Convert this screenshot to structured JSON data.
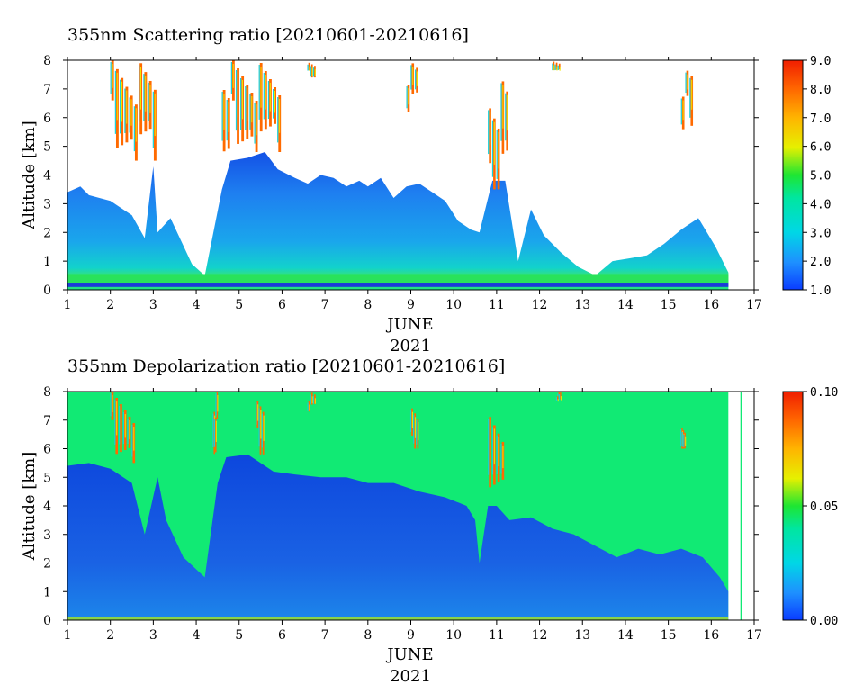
{
  "chart_data": [
    {
      "type": "heatmap",
      "title": "355nm Scattering ratio [20210601-20210616]",
      "xlabel": "JUNE",
      "xlabel2": "2021",
      "ylabel": "Altitude [km]",
      "xlim": [
        1,
        17
      ],
      "ylim": [
        0,
        8
      ],
      "xticks": [
        "1",
        "2",
        "3",
        "4",
        "5",
        "6",
        "7",
        "8",
        "9",
        "10",
        "11",
        "12",
        "13",
        "14",
        "15",
        "16",
        "17"
      ],
      "yticks": [
        "0",
        "1",
        "2",
        "3",
        "4",
        "5",
        "6",
        "7",
        "8"
      ],
      "colorbar": {
        "min": 1.0,
        "max": 9.0,
        "ticks": [
          "1.0",
          "2.0",
          "3.0",
          "4.0",
          "5.0",
          "6.0",
          "7.0",
          "8.0",
          "9.0"
        ]
      },
      "data_end_day": 16.7,
      "blh_top_km": [
        [
          1.0,
          3.4
        ],
        [
          1.3,
          3.6
        ],
        [
          1.5,
          3.3
        ],
        [
          2.0,
          3.1
        ],
        [
          2.5,
          2.6
        ],
        [
          2.8,
          1.8
        ],
        [
          3.0,
          4.3
        ],
        [
          3.1,
          2.0
        ],
        [
          3.4,
          2.5
        ],
        [
          3.9,
          0.9
        ],
        [
          4.2,
          0.5
        ],
        [
          4.6,
          3.5
        ],
        [
          4.8,
          4.5
        ],
        [
          5.2,
          4.6
        ],
        [
          5.6,
          4.8
        ],
        [
          5.9,
          4.2
        ],
        [
          6.3,
          3.9
        ],
        [
          6.6,
          3.7
        ],
        [
          6.9,
          4.0
        ],
        [
          7.2,
          3.9
        ],
        [
          7.5,
          3.6
        ],
        [
          7.8,
          3.8
        ],
        [
          8.0,
          3.6
        ],
        [
          8.3,
          3.9
        ],
        [
          8.6,
          3.2
        ],
        [
          8.9,
          3.6
        ],
        [
          9.2,
          3.7
        ],
        [
          9.5,
          3.4
        ],
        [
          9.8,
          3.1
        ],
        [
          10.1,
          2.4
        ],
        [
          10.4,
          2.1
        ],
        [
          10.6,
          2.0
        ],
        [
          10.9,
          3.8
        ],
        [
          11.2,
          3.8
        ],
        [
          11.5,
          1.0
        ],
        [
          11.8,
          2.8
        ],
        [
          12.1,
          1.9
        ],
        [
          12.5,
          1.3
        ],
        [
          12.9,
          0.8
        ],
        [
          13.3,
          0.5
        ],
        [
          13.7,
          1.0
        ],
        [
          14.1,
          1.1
        ],
        [
          14.5,
          1.2
        ],
        [
          14.9,
          1.6
        ],
        [
          15.3,
          2.1
        ],
        [
          15.7,
          2.5
        ],
        [
          16.1,
          1.5
        ],
        [
          16.4,
          0.6
        ]
      ],
      "cloud_layers": [
        {
          "day_from": 2.0,
          "day_to": 3.1,
          "alt_from_km": 4.5,
          "alt_to_km": 8.0
        },
        {
          "day_from": 4.6,
          "day_to": 6.0,
          "alt_from_km": 4.8,
          "alt_to_km": 8.0
        },
        {
          "day_from": 6.6,
          "day_to": 6.8,
          "alt_from_km": 7.4,
          "alt_to_km": 8.0
        },
        {
          "day_from": 8.9,
          "day_to": 9.2,
          "alt_from_km": 6.2,
          "alt_to_km": 8.0
        },
        {
          "day_from": 10.8,
          "day_to": 11.3,
          "alt_from_km": 3.5,
          "alt_to_km": 7.5
        },
        {
          "day_from": 12.3,
          "day_to": 12.5,
          "alt_from_km": 7.6,
          "alt_to_km": 8.0
        },
        {
          "day_from": 15.3,
          "day_to": 15.6,
          "alt_from_km": 5.5,
          "alt_to_km": 7.7
        }
      ]
    },
    {
      "type": "heatmap",
      "title": "355nm Depolarization ratio [20210601-20210616]",
      "xlabel": "JUNE",
      "xlabel2": "2021",
      "ylabel": "Altitude [km]",
      "xlim": [
        1,
        17
      ],
      "ylim": [
        0,
        8
      ],
      "xticks": [
        "1",
        "2",
        "3",
        "4",
        "5",
        "6",
        "7",
        "8",
        "9",
        "10",
        "11",
        "12",
        "13",
        "14",
        "15",
        "16",
        "17"
      ],
      "yticks": [
        "0",
        "1",
        "2",
        "3",
        "4",
        "5",
        "6",
        "7",
        "8"
      ],
      "colorbar": {
        "min": 0.0,
        "max": 0.1,
        "ticks": [
          "0.00",
          "0.05",
          "0.10"
        ]
      },
      "data_end_day": 16.4,
      "low_depol_top_km": [
        [
          1.0,
          5.4
        ],
        [
          1.5,
          5.5
        ],
        [
          2.0,
          5.3
        ],
        [
          2.5,
          4.8
        ],
        [
          2.8,
          3.0
        ],
        [
          3.1,
          5.0
        ],
        [
          3.3,
          3.5
        ],
        [
          3.7,
          2.2
        ],
        [
          4.2,
          1.5
        ],
        [
          4.5,
          4.8
        ],
        [
          4.7,
          5.7
        ],
        [
          5.2,
          5.8
        ],
        [
          5.8,
          5.2
        ],
        [
          6.3,
          5.1
        ],
        [
          6.9,
          5.0
        ],
        [
          7.5,
          5.0
        ],
        [
          8.0,
          4.8
        ],
        [
          8.6,
          4.8
        ],
        [
          9.2,
          4.5
        ],
        [
          9.8,
          4.3
        ],
        [
          10.3,
          4.0
        ],
        [
          10.5,
          3.5
        ],
        [
          10.6,
          2.0
        ],
        [
          10.8,
          4.0
        ],
        [
          11.0,
          4.0
        ],
        [
          11.3,
          3.5
        ],
        [
          11.8,
          3.6
        ],
        [
          12.3,
          3.2
        ],
        [
          12.8,
          3.0
        ],
        [
          13.3,
          2.6
        ],
        [
          13.8,
          2.2
        ],
        [
          14.3,
          2.5
        ],
        [
          14.8,
          2.3
        ],
        [
          15.3,
          2.5
        ],
        [
          15.8,
          2.2
        ],
        [
          16.2,
          1.5
        ],
        [
          16.4,
          1.0
        ]
      ],
      "cloud_layers": [
        {
          "day_from": 2.0,
          "day_to": 2.6,
          "alt_from_km": 5.5,
          "alt_to_km": 8.0
        },
        {
          "day_from": 4.4,
          "day_to": 4.5,
          "alt_from_km": 5.8,
          "alt_to_km": 8.0
        },
        {
          "day_from": 5.4,
          "day_to": 5.6,
          "alt_from_km": 5.8,
          "alt_to_km": 8.0
        },
        {
          "day_from": 6.6,
          "day_to": 6.8,
          "alt_from_km": 7.3,
          "alt_to_km": 8.0
        },
        {
          "day_from": 9.0,
          "day_to": 9.2,
          "alt_from_km": 6.0,
          "alt_to_km": 8.0
        },
        {
          "day_from": 10.8,
          "day_to": 11.2,
          "alt_from_km": 4.2,
          "alt_to_km": 7.5
        },
        {
          "day_from": 12.4,
          "day_to": 12.5,
          "alt_from_km": 7.7,
          "alt_to_km": 8.0
        },
        {
          "day_from": 15.3,
          "day_to": 15.4,
          "alt_from_km": 6.0,
          "alt_to_km": 7.0
        }
      ]
    }
  ]
}
